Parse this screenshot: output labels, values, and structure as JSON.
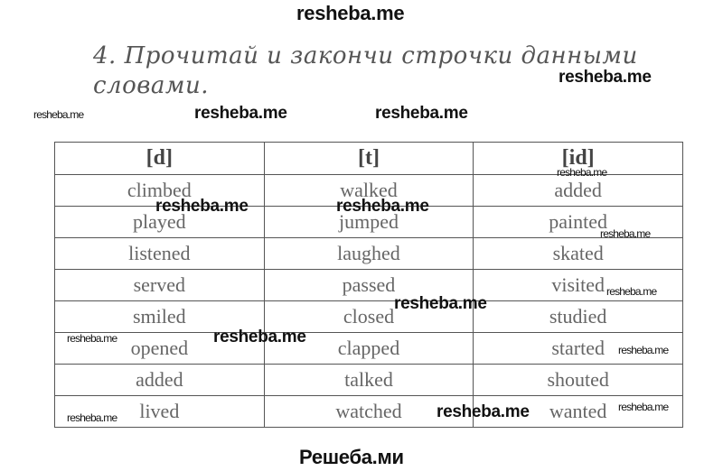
{
  "watermark": {
    "top": "resheba.me",
    "bottom": "Решеба.ми",
    "mark": "resheba.me"
  },
  "exercise": {
    "title": "4. Прочитай и закончи строчки данными словами."
  },
  "table": {
    "headers": [
      "[d]",
      "[t]",
      "[id]"
    ],
    "rows": [
      [
        "climbed",
        "walked",
        "added"
      ],
      [
        "played",
        "jumped",
        "painted"
      ],
      [
        "listened",
        "laughed",
        "skated"
      ],
      [
        "served",
        "passed",
        "visited"
      ],
      [
        "smiled",
        "closed",
        "studied"
      ],
      [
        "opened",
        "clapped",
        "started"
      ],
      [
        "added",
        "talked",
        "shouted"
      ],
      [
        "lived",
        "watched",
        "wanted"
      ]
    ]
  }
}
